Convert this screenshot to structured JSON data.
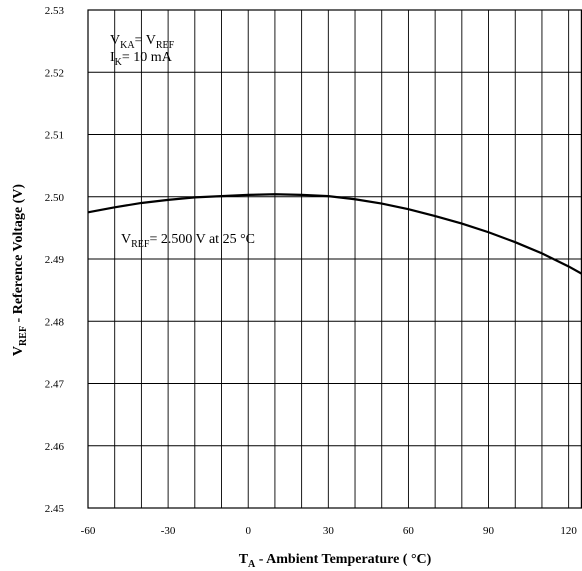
{
  "chart_data": {
    "type": "line",
    "x": [
      -60,
      -50,
      -40,
      -30,
      -20,
      -10,
      0,
      10,
      20,
      30,
      40,
      50,
      60,
      70,
      80,
      90,
      100,
      110,
      120,
      125
    ],
    "series": [
      {
        "values": [
          2.4975,
          2.4983,
          2.499,
          2.4995,
          2.4999,
          2.5001,
          2.5003,
          2.5004,
          2.5003,
          2.5001,
          2.4996,
          2.4989,
          2.498,
          2.4969,
          2.4957,
          2.4943,
          2.4927,
          2.4909,
          2.4888,
          2.4876
        ]
      }
    ],
    "xlim": [
      -60,
      125
    ],
    "ylim": [
      2.45,
      2.53
    ],
    "xticks": [
      "-60",
      "-30",
      "0",
      "30",
      "60",
      "90",
      "120"
    ],
    "yticks": [
      "2.45",
      "2.46",
      "2.47",
      "2.48",
      "2.49",
      "2.50",
      "2.51",
      "2.52",
      "2.53"
    ],
    "xlabel": {
      "main": "T",
      "sub": "A",
      "rest": " - Ambient Temperature ( °C)"
    },
    "ylabel": {
      "main": "V",
      "sub": "REF",
      "rest": " - Reference Voltage (V)"
    },
    "annotations": {
      "vka_v1": "V",
      "vka_sub1": "KA",
      "vka_eq": "= V",
      "vka_sub2": "REF",
      "ik_v": "I",
      "ik_sub": "K",
      "ik_rest": "= 10 mA",
      "vref_v": "V",
      "vref_sub": "REF",
      "vref_rest": "= 2.500 V at 25 °C"
    },
    "grid": true,
    "colors": {
      "line": "#000000",
      "grid": "#000000",
      "background": "#ffffff"
    }
  }
}
